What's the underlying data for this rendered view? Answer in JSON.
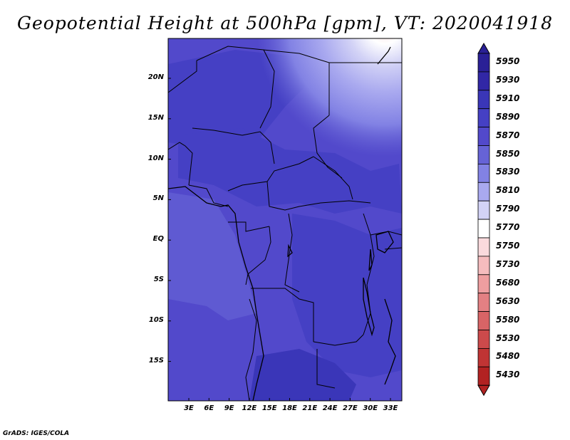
{
  "title": "Geopotential Height at 500hPa [gpm], VT: 2020041918",
  "credit": "GrADS: IGES/COLA",
  "lat_labels": [
    "20N",
    "15N",
    "10N",
    "5N",
    "EQ",
    "5S",
    "10S",
    "15S"
  ],
  "lon_labels": [
    "3E",
    "6E",
    "9E",
    "12E",
    "15E",
    "18E",
    "21E",
    "24E",
    "27E",
    "30E",
    "33E"
  ],
  "colorbar": {
    "labels": [
      "5950",
      "5930",
      "5910",
      "5890",
      "5870",
      "5850",
      "5830",
      "5810",
      "5790",
      "5770",
      "5750",
      "5730",
      "5680",
      "5630",
      "5580",
      "5530",
      "5480",
      "5430"
    ],
    "colors": [
      "#2a2096",
      "#3127a6",
      "#3a36b8",
      "#4540c4",
      "#5249cb",
      "#6663d6",
      "#8282e4",
      "#a9a9ef",
      "#d3d3f6",
      "#ffffff",
      "#fadadd",
      "#f5bcbe",
      "#ee9ea0",
      "#e38083",
      "#d86466",
      "#cc4a4b",
      "#c03434",
      "#b22222"
    ]
  }
}
